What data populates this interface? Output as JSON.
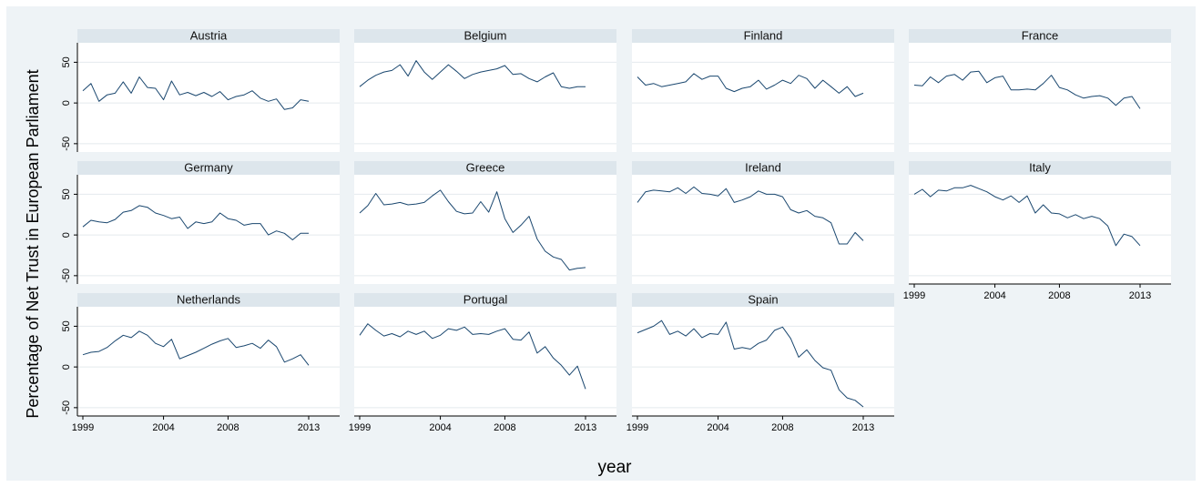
{
  "colors": {
    "background": "#eef3f6",
    "strip": "#dde6ec",
    "plot": "#ffffff",
    "line": "#1a476f"
  },
  "chart_data": {
    "type": "line",
    "layout": "small-multiples",
    "xlabel": "year",
    "ylabel": "Percentage of Net Trust in European Parliament",
    "xlim": [
      1999,
      2013
    ],
    "ylim": [
      -50,
      50
    ],
    "x_ticks": [
      "1999",
      "2004",
      "2008",
      "2013"
    ],
    "y_ticks": [
      "50",
      "0",
      "-50"
    ],
    "grid": true,
    "x": [
      1999,
      1999.5,
      2000,
      2000.5,
      2001,
      2001.5,
      2002,
      2002.5,
      2003,
      2003.5,
      2004,
      2004.5,
      2005,
      2005.5,
      2006,
      2006.5,
      2007,
      2007.5,
      2008,
      2008.5,
      2009,
      2009.5,
      2010,
      2010.5,
      2011,
      2011.5,
      2012,
      2012.5,
      2013
    ],
    "panels": [
      {
        "name": "Austria",
        "values": [
          15,
          24,
          2,
          10,
          12,
          26,
          12,
          32,
          19,
          18,
          4,
          27,
          10,
          13,
          9,
          13,
          8,
          14,
          4,
          8,
          10,
          15,
          6,
          2,
          5,
          -8,
          -6,
          4,
          2
        ]
      },
      {
        "name": "Belgium",
        "values": [
          20,
          28,
          34,
          38,
          40,
          47,
          33,
          52,
          38,
          29,
          38,
          47,
          39,
          30,
          35,
          38,
          40,
          42,
          46,
          35,
          36,
          30,
          26,
          32,
          37,
          20,
          18,
          20,
          20
        ]
      },
      {
        "name": "Finland",
        "values": [
          32,
          22,
          24,
          20,
          22,
          24,
          26,
          36,
          29,
          33,
          33,
          18,
          14,
          18,
          20,
          28,
          17,
          22,
          28,
          24,
          34,
          30,
          18,
          28,
          20,
          12,
          20,
          8,
          12
        ]
      },
      {
        "name": "France",
        "values": [
          22,
          21,
          32,
          25,
          33,
          35,
          28,
          38,
          39,
          25,
          31,
          33,
          16,
          16,
          17,
          16,
          24,
          34,
          19,
          16,
          10,
          6,
          8,
          9,
          6,
          -3,
          6,
          8,
          -7
        ]
      },
      {
        "name": "Germany",
        "values": [
          10,
          18,
          16,
          15,
          19,
          28,
          30,
          36,
          34,
          27,
          24,
          20,
          22,
          8,
          16,
          14,
          16,
          27,
          20,
          18,
          12,
          14,
          14,
          0,
          5,
          2,
          -6,
          2,
          2
        ]
      },
      {
        "name": "Greece",
        "values": [
          27,
          36,
          51,
          37,
          38,
          40,
          37,
          38,
          40,
          48,
          55,
          41,
          29,
          26,
          27,
          41,
          28,
          53,
          20,
          3,
          12,
          23,
          -5,
          -20,
          -27,
          -30,
          -43,
          -41,
          -40
        ]
      },
      {
        "name": "Ireland",
        "values": [
          40,
          53,
          55,
          54,
          53,
          58,
          51,
          59,
          51,
          50,
          48,
          57,
          40,
          43,
          47,
          54,
          50,
          50,
          47,
          31,
          27,
          30,
          23,
          21,
          15,
          -11,
          -11,
          3,
          -7
        ]
      },
      {
        "name": "Italy",
        "values": [
          50,
          56,
          47,
          55,
          54,
          58,
          58,
          61,
          57,
          53,
          47,
          43,
          48,
          40,
          48,
          27,
          37,
          27,
          26,
          21,
          25,
          20,
          23,
          20,
          11,
          -13,
          1,
          -2,
          -13
        ]
      },
      {
        "name": "Netherlands",
        "values": [
          15,
          18,
          19,
          24,
          32,
          39,
          36,
          44,
          39,
          29,
          25,
          34,
          10,
          14,
          18,
          23,
          28,
          32,
          35,
          24,
          26,
          29,
          23,
          33,
          25,
          6,
          10,
          15,
          2
        ]
      },
      {
        "name": "Portugal",
        "values": [
          39,
          53,
          45,
          38,
          41,
          37,
          44,
          40,
          44,
          35,
          39,
          47,
          45,
          49,
          40,
          41,
          40,
          44,
          47,
          34,
          33,
          43,
          17,
          25,
          11,
          2,
          -10,
          1,
          -27
        ]
      },
      {
        "name": "Spain",
        "values": [
          42,
          46,
          50,
          57,
          40,
          44,
          38,
          47,
          36,
          41,
          40,
          55,
          22,
          24,
          22,
          29,
          33,
          45,
          49,
          35,
          12,
          21,
          8,
          -1,
          -4,
          -28,
          -38,
          -41,
          -49
        ]
      }
    ]
  }
}
